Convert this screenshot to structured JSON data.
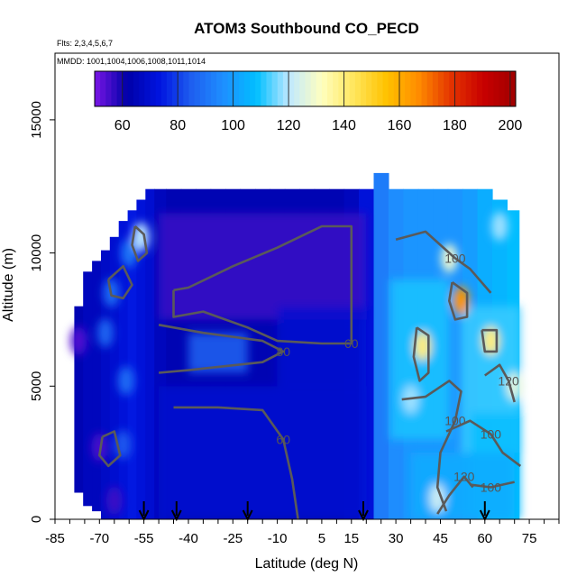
{
  "chart_data": {
    "type": "heatmap",
    "title": "ATOM3 Southbound CO_PECD",
    "notes": [
      "Flts: 2,3,4,5,6,7",
      "MMDD: 1001,1004,1006,1008,1011,1014"
    ],
    "xlabel": "Latitude (deg N)",
    "ylabel": "Altitude (m)",
    "xlim": [
      -85,
      85
    ],
    "ylim": [
      0,
      17500
    ],
    "x_ticks": [
      -85,
      -70,
      -55,
      -40,
      -25,
      -10,
      5,
      15,
      30,
      45,
      60,
      75
    ],
    "y_ticks": [
      0,
      5000,
      10000,
      15000
    ],
    "colorbar": {
      "min": 50,
      "max": 202,
      "ticks": [
        60,
        80,
        100,
        120,
        140,
        160,
        180,
        200
      ],
      "colors": [
        "#7a16e6",
        "#0000a8",
        "#0014e0",
        "#1e5ff0",
        "#1e90ff",
        "#00bfff",
        "#bfe8ff",
        "#ffffc0",
        "#ffe65c",
        "#ffc200",
        "#ff8c00",
        "#e43400",
        "#c80000",
        "#a00000"
      ]
    },
    "columns": [
      {
        "lat": -77,
        "top": 8000,
        "bottom": 1000,
        "value": 64
      },
      {
        "lat": -74,
        "top": 9300,
        "bottom": 500,
        "value": 66
      },
      {
        "lat": -71,
        "top": 9700,
        "bottom": 300,
        "value": 66
      },
      {
        "lat": -68,
        "top": 10100,
        "bottom": 0,
        "value": 68
      },
      {
        "lat": -65,
        "top": 10600,
        "bottom": 0,
        "value": 70
      },
      {
        "lat": -62,
        "top": 11200,
        "bottom": 0,
        "value": 72
      },
      {
        "lat": -59,
        "top": 11600,
        "bottom": 0,
        "value": 74
      },
      {
        "lat": -56,
        "top": 12000,
        "bottom": 0,
        "value": 72
      },
      {
        "lat": -53,
        "top": 12400,
        "bottom": 0,
        "value": 70
      },
      {
        "lat": -50,
        "top": 12400,
        "bottom": 0,
        "value": 66
      },
      {
        "lat": -45,
        "top": 12400,
        "bottom": 0,
        "value": 64
      },
      {
        "lat": -40,
        "top": 12400,
        "bottom": 0,
        "value": 64
      },
      {
        "lat": -35,
        "top": 12400,
        "bottom": 0,
        "value": 64
      },
      {
        "lat": -30,
        "top": 12400,
        "bottom": 0,
        "value": 64
      },
      {
        "lat": -25,
        "top": 12400,
        "bottom": 0,
        "value": 64
      },
      {
        "lat": -20,
        "top": 12400,
        "bottom": 0,
        "value": 64
      },
      {
        "lat": -15,
        "top": 12400,
        "bottom": 0,
        "value": 64
      },
      {
        "lat": -10,
        "top": 12400,
        "bottom": 0,
        "value": 64
      },
      {
        "lat": -5,
        "top": 12400,
        "bottom": 0,
        "value": 64
      },
      {
        "lat": 0,
        "top": 12400,
        "bottom": 0,
        "value": 64
      },
      {
        "lat": 5,
        "top": 12400,
        "bottom": 0,
        "value": 64
      },
      {
        "lat": 10,
        "top": 12400,
        "bottom": 0,
        "value": 64
      },
      {
        "lat": 15,
        "top": 12400,
        "bottom": 0,
        "value": 66
      },
      {
        "lat": 20,
        "top": 12400,
        "bottom": 0,
        "value": 72
      },
      {
        "lat": 25,
        "top": 13000,
        "bottom": 0,
        "value": 92
      },
      {
        "lat": 30,
        "top": 12400,
        "bottom": 0,
        "value": 96
      },
      {
        "lat": 35,
        "top": 12400,
        "bottom": 0,
        "value": 98
      },
      {
        "lat": 40,
        "top": 12400,
        "bottom": 0,
        "value": 98
      },
      {
        "lat": 45,
        "top": 12400,
        "bottom": 0,
        "value": 98
      },
      {
        "lat": 50,
        "top": 12400,
        "bottom": 0,
        "value": 98
      },
      {
        "lat": 55,
        "top": 12400,
        "bottom": 0,
        "value": 100
      },
      {
        "lat": 60,
        "top": 12400,
        "bottom": 0,
        "value": 104
      },
      {
        "lat": 65,
        "top": 12000,
        "bottom": 0,
        "value": 106
      },
      {
        "lat": 70,
        "top": 11600,
        "bottom": 0,
        "value": 108
      }
    ],
    "regions": [
      {
        "lat": [
          -50,
          20
        ],
        "alt": [
          7500,
          11500
        ],
        "value": 56
      },
      {
        "lat": [
          -40,
          -20
        ],
        "alt": [
          5500,
          7000
        ],
        "value": 86
      },
      {
        "lat": [
          -50,
          20
        ],
        "alt": [
          0,
          5000
        ],
        "value": 70
      },
      {
        "lat": [
          -10,
          20
        ],
        "alt": [
          5000,
          8000
        ],
        "value": 70
      },
      {
        "lat": [
          28,
          48
        ],
        "alt": [
          3000,
          9000
        ],
        "value": 110
      },
      {
        "lat": [
          52,
          72
        ],
        "alt": [
          2500,
          8000
        ],
        "value": 112
      },
      {
        "lat": [
          55,
          72
        ],
        "alt": [
          0,
          4000
        ],
        "value": 108
      },
      {
        "lat": [
          35,
          70
        ],
        "alt": [
          0,
          2500
        ],
        "value": 104
      }
    ],
    "spots": [
      {
        "lat": -56,
        "alt": 10600,
        "value": 120
      },
      {
        "lat": -60,
        "alt": 10000,
        "value": 90
      },
      {
        "lat": -66,
        "alt": 8500,
        "value": 88
      },
      {
        "lat": -68,
        "alt": 7000,
        "value": 86
      },
      {
        "lat": -61,
        "alt": 5200,
        "value": 88
      },
      {
        "lat": -62,
        "alt": 2800,
        "value": 84
      },
      {
        "lat": -77,
        "alt": 6700,
        "value": 54
      },
      {
        "lat": -70,
        "alt": 2700,
        "value": 55
      },
      {
        "lat": -65,
        "alt": 700,
        "value": 56
      },
      {
        "lat": 39,
        "alt": 6500,
        "value": 140
      },
      {
        "lat": 52,
        "alt": 8200,
        "value": 165
      },
      {
        "lat": 62,
        "alt": 6700,
        "value": 140
      },
      {
        "lat": 48,
        "alt": 9800,
        "value": 128
      },
      {
        "lat": 65,
        "alt": 11000,
        "value": 118
      },
      {
        "lat": 35,
        "alt": 4500,
        "value": 118
      },
      {
        "lat": 70,
        "alt": 5000,
        "value": 126
      },
      {
        "lat": 44,
        "alt": 800,
        "value": 122
      }
    ],
    "contours": [
      {
        "label": "60",
        "points": [
          [
            -45,
            8600
          ],
          [
            -45,
            7600
          ],
          [
            -35,
            7800
          ],
          [
            -20,
            7200
          ],
          [
            -10,
            6700
          ],
          [
            5,
            6600
          ],
          [
            15,
            6600
          ],
          [
            15,
            11000
          ],
          [
            5,
            11000
          ],
          [
            -10,
            10200
          ],
          [
            -25,
            9500
          ],
          [
            -40,
            8700
          ],
          [
            -45,
            8600
          ]
        ]
      },
      {
        "label": "80",
        "points": [
          [
            -50,
            7300
          ],
          [
            -35,
            7000
          ],
          [
            -15,
            6700
          ],
          [
            -8,
            6300
          ],
          [
            -15,
            5900
          ],
          [
            -40,
            5600
          ],
          [
            -50,
            5500
          ]
        ]
      },
      {
        "label": "60",
        "points": [
          [
            -45,
            4200
          ],
          [
            -30,
            4200
          ],
          [
            -15,
            4100
          ],
          [
            -8,
            3000
          ],
          [
            -5,
            1500
          ],
          [
            -3,
            0
          ]
        ]
      },
      {
        "label": "100",
        "points": [
          [
            30,
            10500
          ],
          [
            40,
            10800
          ],
          [
            50,
            9800
          ],
          [
            55,
            9400
          ],
          [
            62,
            8500
          ]
        ]
      },
      {
        "label": "100",
        "points": [
          [
            32,
            4500
          ],
          [
            40,
            4600
          ],
          [
            48,
            5200
          ],
          [
            52,
            4800
          ],
          [
            50,
            3700
          ],
          [
            45,
            2500
          ],
          [
            44,
            1200
          ],
          [
            47,
            300
          ]
        ]
      },
      {
        "label": "100",
        "points": [
          [
            47,
            3300
          ],
          [
            55,
            3700
          ],
          [
            62,
            3200
          ],
          [
            66,
            2500
          ],
          [
            72,
            2000
          ]
        ]
      },
      {
        "label": "120",
        "points": [
          [
            60,
            5400
          ],
          [
            65,
            5800
          ],
          [
            68,
            5200
          ],
          [
            70,
            4400
          ]
        ]
      },
      {
        "label": "120",
        "points": [
          [
            44,
            200
          ],
          [
            48,
            900
          ],
          [
            53,
            1600
          ],
          [
            56,
            1200
          ]
        ]
      },
      {
        "label": "100",
        "points": [
          [
            55,
            1300
          ],
          [
            62,
            1200
          ],
          [
            70,
            1400
          ]
        ]
      },
      {
        "label": "",
        "points": [
          [
            -58,
            11000
          ],
          [
            -55,
            10700
          ],
          [
            -54,
            10000
          ],
          [
            -57,
            9700
          ],
          [
            -59,
            10300
          ],
          [
            -58,
            11000
          ]
        ]
      },
      {
        "label": "",
        "points": [
          [
            37,
            7200
          ],
          [
            41,
            6900
          ],
          [
            41,
            5500
          ],
          [
            38,
            5200
          ],
          [
            36,
            6100
          ],
          [
            37,
            7200
          ]
        ]
      },
      {
        "label": "",
        "points": [
          [
            49,
            8900
          ],
          [
            54,
            8500
          ],
          [
            54,
            7600
          ],
          [
            50,
            7500
          ],
          [
            48,
            8200
          ],
          [
            49,
            8900
          ]
        ]
      },
      {
        "label": "",
        "points": [
          [
            59,
            7100
          ],
          [
            64,
            7100
          ],
          [
            64,
            6300
          ],
          [
            60,
            6300
          ],
          [
            59,
            7100
          ]
        ]
      },
      {
        "label": "",
        "points": [
          [
            -67,
            9000
          ],
          [
            -62,
            9500
          ],
          [
            -59,
            8800
          ],
          [
            -62,
            8300
          ],
          [
            -66,
            8400
          ],
          [
            -67,
            9000
          ]
        ]
      },
      {
        "label": "",
        "points": [
          [
            -69,
            3100
          ],
          [
            -65,
            3300
          ],
          [
            -63,
            2400
          ],
          [
            -67,
            2000
          ],
          [
            -70,
            2400
          ],
          [
            -69,
            3100
          ]
        ]
      }
    ],
    "arrows": [
      -55,
      -44,
      -20,
      19,
      60
    ]
  }
}
